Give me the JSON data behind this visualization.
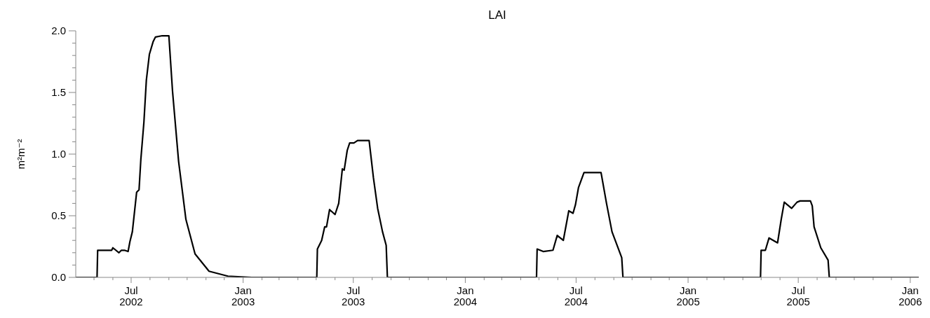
{
  "chart_data": {
    "type": "line",
    "title": "LAI",
    "ylabel": "m²m⁻²",
    "x": [
      "2002-04-01",
      "2002-05-06",
      "2002-05-07",
      "2002-05-30",
      "2002-06-01",
      "2002-06-11",
      "2002-06-15",
      "2002-06-20",
      "2002-06-26",
      "2002-06-29",
      "2002-07-03",
      "2002-07-10",
      "2002-07-14",
      "2002-07-17",
      "2002-07-22",
      "2002-07-26",
      "2002-07-31",
      "2002-08-06",
      "2002-08-10",
      "2002-08-21",
      "2002-09-01",
      "2002-09-07",
      "2002-09-17",
      "2002-09-29",
      "2002-10-14",
      "2002-11-06",
      "2002-12-07",
      "2003-01-15",
      "2003-05-02",
      "2003-05-03",
      "2003-05-10",
      "2003-05-15",
      "2003-05-18",
      "2003-05-23",
      "2003-06-01",
      "2003-06-07",
      "2003-06-13",
      "2003-06-16",
      "2003-06-21",
      "2003-06-25",
      "2003-07-02",
      "2003-07-08",
      "2003-07-27",
      "2003-08-03",
      "2003-08-10",
      "2003-08-18",
      "2003-08-24",
      "2003-08-26",
      "2004-04-27",
      "2004-04-28",
      "2004-05-08",
      "2004-05-24",
      "2004-05-31",
      "2004-06-10",
      "2004-06-19",
      "2004-06-26",
      "2004-06-30",
      "2004-07-05",
      "2004-07-14",
      "2004-08-11",
      "2004-08-20",
      "2004-08-29",
      "2004-09-14",
      "2004-09-16",
      "2005-04-30",
      "2005-05-01",
      "2005-05-08",
      "2005-05-14",
      "2005-05-28",
      "2005-06-03",
      "2005-06-08",
      "2005-06-20",
      "2005-06-29",
      "2005-07-04",
      "2005-07-21",
      "2005-07-24",
      "2005-07-27",
      "2005-08-07",
      "2005-08-19",
      "2005-08-21",
      "2006-01-15"
    ],
    "series": [
      {
        "color": "#000000",
        "values": [
          0,
          0,
          0.22,
          0.22,
          0.24,
          0.2,
          0.22,
          0.22,
          0.21,
          0.29,
          0.37,
          0.69,
          0.71,
          0.96,
          1.26,
          1.6,
          1.81,
          1.91,
          1.95,
          1.96,
          1.96,
          1.51,
          0.94,
          0.47,
          0.19,
          0.05,
          0.01,
          0,
          0,
          0.23,
          0.3,
          0.41,
          0.41,
          0.55,
          0.51,
          0.6,
          0.88,
          0.87,
          1.03,
          1.09,
          1.09,
          1.11,
          1.11,
          0.81,
          0.56,
          0.37,
          0.26,
          0,
          0,
          0.23,
          0.21,
          0.22,
          0.34,
          0.3,
          0.54,
          0.52,
          0.59,
          0.73,
          0.85,
          0.85,
          0.6,
          0.37,
          0.16,
          0,
          0,
          0.22,
          0.22,
          0.32,
          0.28,
          0.47,
          0.61,
          0.56,
          0.61,
          0.62,
          0.62,
          0.58,
          0.41,
          0.24,
          0.14,
          0,
          0
        ]
      }
    ],
    "xlim": [
      "2002-04-01",
      "2006-01-15"
    ],
    "xticks": [
      {
        "value": "2002-05-01",
        "label": null
      },
      {
        "value": "2002-06-01",
        "label": null
      },
      {
        "value": "2002-07-01",
        "label": "Jul 2002"
      },
      {
        "value": "2002-08-01",
        "label": null
      },
      {
        "value": "2002-09-01",
        "label": null
      },
      {
        "value": "2002-10-01",
        "label": null
      },
      {
        "value": "2002-11-01",
        "label": null
      },
      {
        "value": "2002-12-01",
        "label": null
      },
      {
        "value": "2003-01-01",
        "label": "Jan 2003"
      },
      {
        "value": "2003-02-01",
        "label": null
      },
      {
        "value": "2003-03-01",
        "label": null
      },
      {
        "value": "2003-04-01",
        "label": null
      },
      {
        "value": "2003-05-01",
        "label": null
      },
      {
        "value": "2003-06-01",
        "label": null
      },
      {
        "value": "2003-07-01",
        "label": "Jul 2003"
      },
      {
        "value": "2003-08-01",
        "label": null
      },
      {
        "value": "2003-09-01",
        "label": null
      },
      {
        "value": "2003-10-01",
        "label": null
      },
      {
        "value": "2003-11-01",
        "label": null
      },
      {
        "value": "2003-12-01",
        "label": null
      },
      {
        "value": "2004-01-01",
        "label": "Jan 2004"
      },
      {
        "value": "2004-02-01",
        "label": null
      },
      {
        "value": "2004-03-01",
        "label": null
      },
      {
        "value": "2004-04-01",
        "label": null
      },
      {
        "value": "2004-05-01",
        "label": null
      },
      {
        "value": "2004-06-01",
        "label": null
      },
      {
        "value": "2004-07-01",
        "label": "Jul 2004"
      },
      {
        "value": "2004-08-01",
        "label": null
      },
      {
        "value": "2004-09-01",
        "label": null
      },
      {
        "value": "2004-10-01",
        "label": null
      },
      {
        "value": "2004-11-01",
        "label": null
      },
      {
        "value": "2004-12-01",
        "label": null
      },
      {
        "value": "2005-01-01",
        "label": "Jan 2005"
      },
      {
        "value": "2005-02-01",
        "label": null
      },
      {
        "value": "2005-03-01",
        "label": null
      },
      {
        "value": "2005-04-01",
        "label": null
      },
      {
        "value": "2005-05-01",
        "label": null
      },
      {
        "value": "2005-06-01",
        "label": null
      },
      {
        "value": "2005-07-01",
        "label": "Jul 2005"
      },
      {
        "value": "2005-08-01",
        "label": null
      },
      {
        "value": "2005-09-01",
        "label": null
      },
      {
        "value": "2005-10-01",
        "label": null
      },
      {
        "value": "2005-11-01",
        "label": null
      },
      {
        "value": "2005-12-01",
        "label": null
      },
      {
        "value": "2006-01-01",
        "label": "Jan 2006"
      }
    ],
    "ylim": [
      0,
      2.0
    ],
    "yticks": [
      {
        "value": 0,
        "label": "0.0"
      },
      {
        "value": 0.1,
        "label": null
      },
      {
        "value": 0.2,
        "label": null
      },
      {
        "value": 0.3,
        "label": null
      },
      {
        "value": 0.4,
        "label": null
      },
      {
        "value": 0.5,
        "label": "0.5"
      },
      {
        "value": 0.6,
        "label": null
      },
      {
        "value": 0.7,
        "label": null
      },
      {
        "value": 0.8,
        "label": null
      },
      {
        "value": 0.9,
        "label": null
      },
      {
        "value": 1.0,
        "label": "1.0"
      },
      {
        "value": 1.1,
        "label": null
      },
      {
        "value": 1.2,
        "label": null
      },
      {
        "value": 1.3,
        "label": null
      },
      {
        "value": 1.4,
        "label": null
      },
      {
        "value": 1.5,
        "label": "1.5"
      },
      {
        "value": 1.6,
        "label": null
      },
      {
        "value": 1.7,
        "label": null
      },
      {
        "value": 1.8,
        "label": null
      },
      {
        "value": 1.9,
        "label": null
      },
      {
        "value": 2.0,
        "label": "2.0"
      }
    ],
    "grid": false,
    "legend": false,
    "marker": "none",
    "line_style": "solid"
  }
}
